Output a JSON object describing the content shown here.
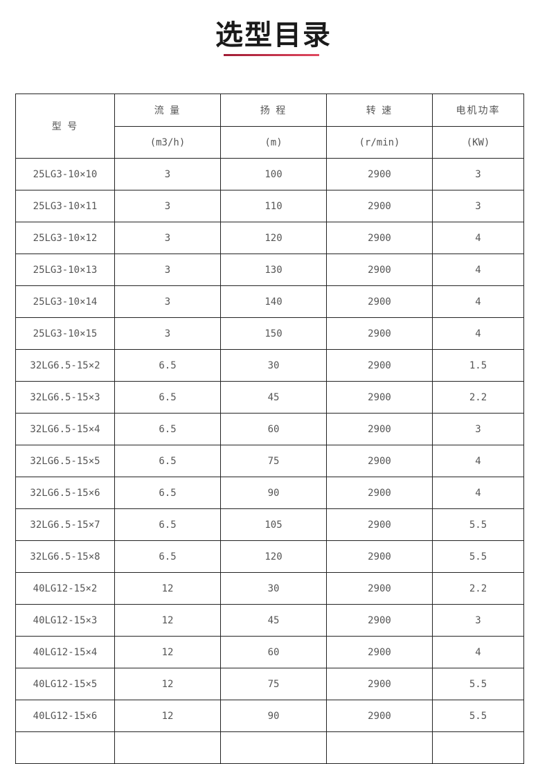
{
  "title": "选型目录",
  "accent_color": "#c0304a",
  "table": {
    "headers": {
      "model": "型 号",
      "flow": "流  量",
      "head": "扬  程",
      "speed": "转  速",
      "power": "电机功率",
      "flow_unit": "(m3/h)",
      "head_unit": "(m)",
      "speed_unit": "(r/min)",
      "power_unit": "(KW)"
    },
    "rows": [
      [
        "25LG3-10×10",
        "3",
        "100",
        "2900",
        "3"
      ],
      [
        "25LG3-10×11",
        "3",
        "110",
        "2900",
        "3"
      ],
      [
        "25LG3-10×12",
        "3",
        "120",
        "2900",
        "4"
      ],
      [
        "25LG3-10×13",
        "3",
        "130",
        "2900",
        "4"
      ],
      [
        "25LG3-10×14",
        "3",
        "140",
        "2900",
        "4"
      ],
      [
        "25LG3-10×15",
        "3",
        "150",
        "2900",
        "4"
      ],
      [
        "32LG6.5-15×2",
        "6.5",
        "30",
        "2900",
        "1.5"
      ],
      [
        "32LG6.5-15×3",
        "6.5",
        "45",
        "2900",
        "2.2"
      ],
      [
        "32LG6.5-15×4",
        "6.5",
        "60",
        "2900",
        "3"
      ],
      [
        "32LG6.5-15×5",
        "6.5",
        "75",
        "2900",
        "4"
      ],
      [
        "32LG6.5-15×6",
        "6.5",
        "90",
        "2900",
        "4"
      ],
      [
        "32LG6.5-15×7",
        "6.5",
        "105",
        "2900",
        "5.5"
      ],
      [
        "32LG6.5-15×8",
        "6.5",
        "120",
        "2900",
        "5.5"
      ],
      [
        "40LG12-15×2",
        "12",
        "30",
        "2900",
        "2.2"
      ],
      [
        "40LG12-15×3",
        "12",
        "45",
        "2900",
        "3"
      ],
      [
        "40LG12-15×4",
        "12",
        "60",
        "2900",
        "4"
      ],
      [
        "40LG12-15×5",
        "12",
        "75",
        "2900",
        "5.5"
      ],
      [
        "40LG12-15×6",
        "12",
        "90",
        "2900",
        "5.5"
      ]
    ]
  }
}
